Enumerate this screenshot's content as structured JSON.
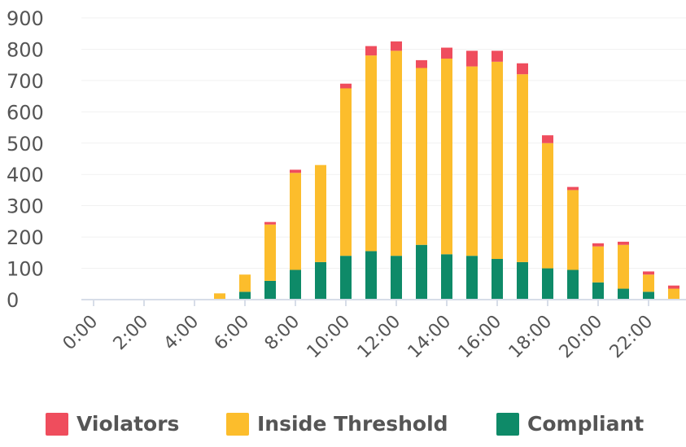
{
  "chart_data": {
    "type": "bar",
    "stacked": true,
    "categories": [
      "0:00",
      "1:00",
      "2:00",
      "3:00",
      "4:00",
      "5:00",
      "6:00",
      "7:00",
      "8:00",
      "9:00",
      "10:00",
      "11:00",
      "12:00",
      "13:00",
      "14:00",
      "15:00",
      "16:00",
      "17:00",
      "18:00",
      "19:00",
      "20:00",
      "21:00",
      "22:00",
      "23:00"
    ],
    "x_tick_labels": [
      "0:00",
      "2:00",
      "4:00",
      "6:00",
      "8:00",
      "10:00",
      "12:00",
      "14:00",
      "16:00",
      "18:00",
      "20:00",
      "22:00"
    ],
    "ylim": [
      0,
      900
    ],
    "y_ticks": [
      0,
      100,
      200,
      300,
      400,
      500,
      600,
      700,
      800,
      900
    ],
    "grid": true,
    "legend_position": "bottom",
    "series": [
      {
        "name": "Compliant",
        "color": "#0e8a68",
        "values": [
          0,
          0,
          0,
          0,
          0,
          0,
          25,
          60,
          95,
          120,
          140,
          155,
          140,
          175,
          145,
          140,
          130,
          120,
          100,
          95,
          55,
          35,
          25,
          0
        ]
      },
      {
        "name": "Inside Threshold",
        "color": "#fcbd2c",
        "values": [
          0,
          0,
          0,
          0,
          0,
          20,
          55,
          180,
          310,
          310,
          535,
          625,
          655,
          565,
          625,
          605,
          630,
          600,
          400,
          255,
          115,
          140,
          55,
          35
        ]
      },
      {
        "name": "Violators",
        "color": "#ef4d5d",
        "values": [
          0,
          0,
          0,
          0,
          0,
          0,
          0,
          8,
          10,
          0,
          15,
          30,
          30,
          25,
          35,
          50,
          35,
          35,
          25,
          10,
          10,
          10,
          10,
          10
        ]
      }
    ],
    "legend_order": [
      "Violators",
      "Inside Threshold",
      "Compliant"
    ]
  }
}
